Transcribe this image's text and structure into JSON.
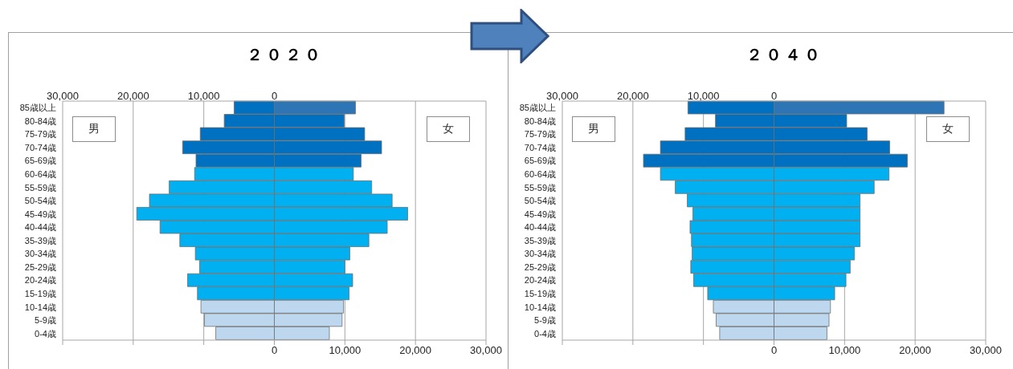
{
  "chart_data": [
    {
      "type": "bar",
      "title": "２０２０",
      "orientation": "horizontal",
      "stacked": true,
      "grid": "x",
      "legend": false,
      "categories": [
        "85歳以上",
        "80-84歳",
        "75-79歳",
        "70-74歳",
        "65-69歳",
        "60-64歳",
        "55-59歳",
        "50-54歳",
        "45-49歳",
        "40-44歳",
        "35-39歳",
        "30-34歳",
        "25-29歳",
        "20-24歳",
        "15-19歳",
        "10-14歳",
        "5-9歳",
        "0-4歳"
      ],
      "xlim": [
        -30000,
        30000
      ],
      "xticks": [
        {
          "value": -30000,
          "label": null
        },
        {
          "value": -20000,
          "label": null
        },
        {
          "value": -10000,
          "label": null
        },
        0,
        {
          "value": 10000,
          "label": "10,000"
        },
        {
          "value": 20000,
          "label": "20,000"
        },
        {
          "value": 30000,
          "label": "30,000"
        }
      ],
      "x2lim": [
        -30000,
        30000
      ],
      "x2ticks": [
        {
          "value": -30000,
          "label": "30,000"
        },
        {
          "value": -20000,
          "label": "20,000"
        },
        {
          "value": -10000,
          "label": "10,000"
        },
        0
      ],
      "annotations": [
        "男",
        "女"
      ],
      "series": [
        {
          "colors": [
            "#0070c0",
            "#0070c0",
            "#0070c0",
            "#0070c0",
            "#0070c0",
            "#00b0f0",
            "#00b0f0",
            "#00b0f0",
            "#00b0f0",
            "#00b0f0",
            "#00b0f0",
            "#00b0f0",
            "#00b0f0",
            "#00b0f0",
            "#00b0f0",
            "#bdd7ee",
            "#bdd7ee",
            "#bdd7ee"
          ],
          "values": [
            -5700,
            -7100,
            -10500,
            -13000,
            -11100,
            -11300,
            -14900,
            -17700,
            -19500,
            -16200,
            -13400,
            -11200,
            -10600,
            -12300,
            -10900,
            -10400,
            -9900,
            -8300
          ]
        },
        {
          "colors": [
            "#2e75b6",
            "#0070c0",
            "#0070c0",
            "#0070c0",
            "#0070c0",
            "#00b0f0",
            "#00b0f0",
            "#00b0f0",
            "#00b0f0",
            "#00b0f0",
            "#00b0f0",
            "#00b0f0",
            "#00b0f0",
            "#00b0f0",
            "#00b0f0",
            "#bdd7ee",
            "#bdd7ee",
            "#bdd7ee"
          ],
          "values": [
            11500,
            9900,
            12800,
            15200,
            12300,
            11200,
            13800,
            16700,
            18900,
            16000,
            13400,
            10700,
            10000,
            11100,
            10600,
            9800,
            9600,
            7800
          ]
        }
      ]
    },
    {
      "type": "bar",
      "title": "２０４０",
      "orientation": "horizontal",
      "stacked": true,
      "grid": "x",
      "legend": false,
      "categories": [
        "85歳以上",
        "80-84歳",
        "75-79歳",
        "70-74歳",
        "65-69歳",
        "60-64歳",
        "55-59歳",
        "50-54歳",
        "45-49歳",
        "40-44歳",
        "35-39歳",
        "30-34歳",
        "25-29歳",
        "20-24歳",
        "15-19歳",
        "10-14歳",
        "5-9歳",
        "0-4歳"
      ],
      "xlim": [
        -30000,
        30000
      ],
      "xticks": [
        {
          "value": -30000,
          "label": null
        },
        {
          "value": -20000,
          "label": null
        },
        {
          "value": -10000,
          "label": null
        },
        0,
        {
          "value": 10000,
          "label": "10,000"
        },
        {
          "value": 20000,
          "label": "20,000"
        },
        {
          "value": 30000,
          "label": "30,000"
        }
      ],
      "x2lim": [
        -30000,
        30000
      ],
      "x2ticks": [
        {
          "value": -30000,
          "label": "30,000"
        },
        {
          "value": -20000,
          "label": "20,000"
        },
        {
          "value": -10000,
          "label": "10,000"
        },
        0
      ],
      "annotations": [
        "男",
        "女"
      ],
      "series": [
        {
          "colors": [
            "#0070c0",
            "#0070c0",
            "#0070c0",
            "#0070c0",
            "#0070c0",
            "#00b0f0",
            "#00b0f0",
            "#00b0f0",
            "#00b0f0",
            "#00b0f0",
            "#00b0f0",
            "#00b0f0",
            "#00b0f0",
            "#00b0f0",
            "#00b0f0",
            "#bdd7ee",
            "#bdd7ee",
            "#bdd7ee"
          ],
          "values": [
            -12200,
            -8300,
            -12600,
            -16100,
            -18500,
            -16100,
            -14000,
            -12300,
            -11500,
            -11900,
            -11700,
            -11600,
            -11800,
            -11400,
            -9400,
            -8600,
            -8200,
            -7700
          ]
        },
        {
          "colors": [
            "#2e75b6",
            "#0070c0",
            "#0070c0",
            "#0070c0",
            "#0070c0",
            "#00b0f0",
            "#00b0f0",
            "#00b0f0",
            "#00b0f0",
            "#00b0f0",
            "#00b0f0",
            "#00b0f0",
            "#00b0f0",
            "#00b0f0",
            "#00b0f0",
            "#bdd7ee",
            "#bdd7ee",
            "#bdd7ee"
          ],
          "values": [
            24100,
            10300,
            13200,
            16400,
            18900,
            16300,
            14200,
            12200,
            12200,
            12200,
            12200,
            11400,
            10800,
            10200,
            8600,
            8000,
            7800,
            7500
          ]
        }
      ]
    }
  ]
}
